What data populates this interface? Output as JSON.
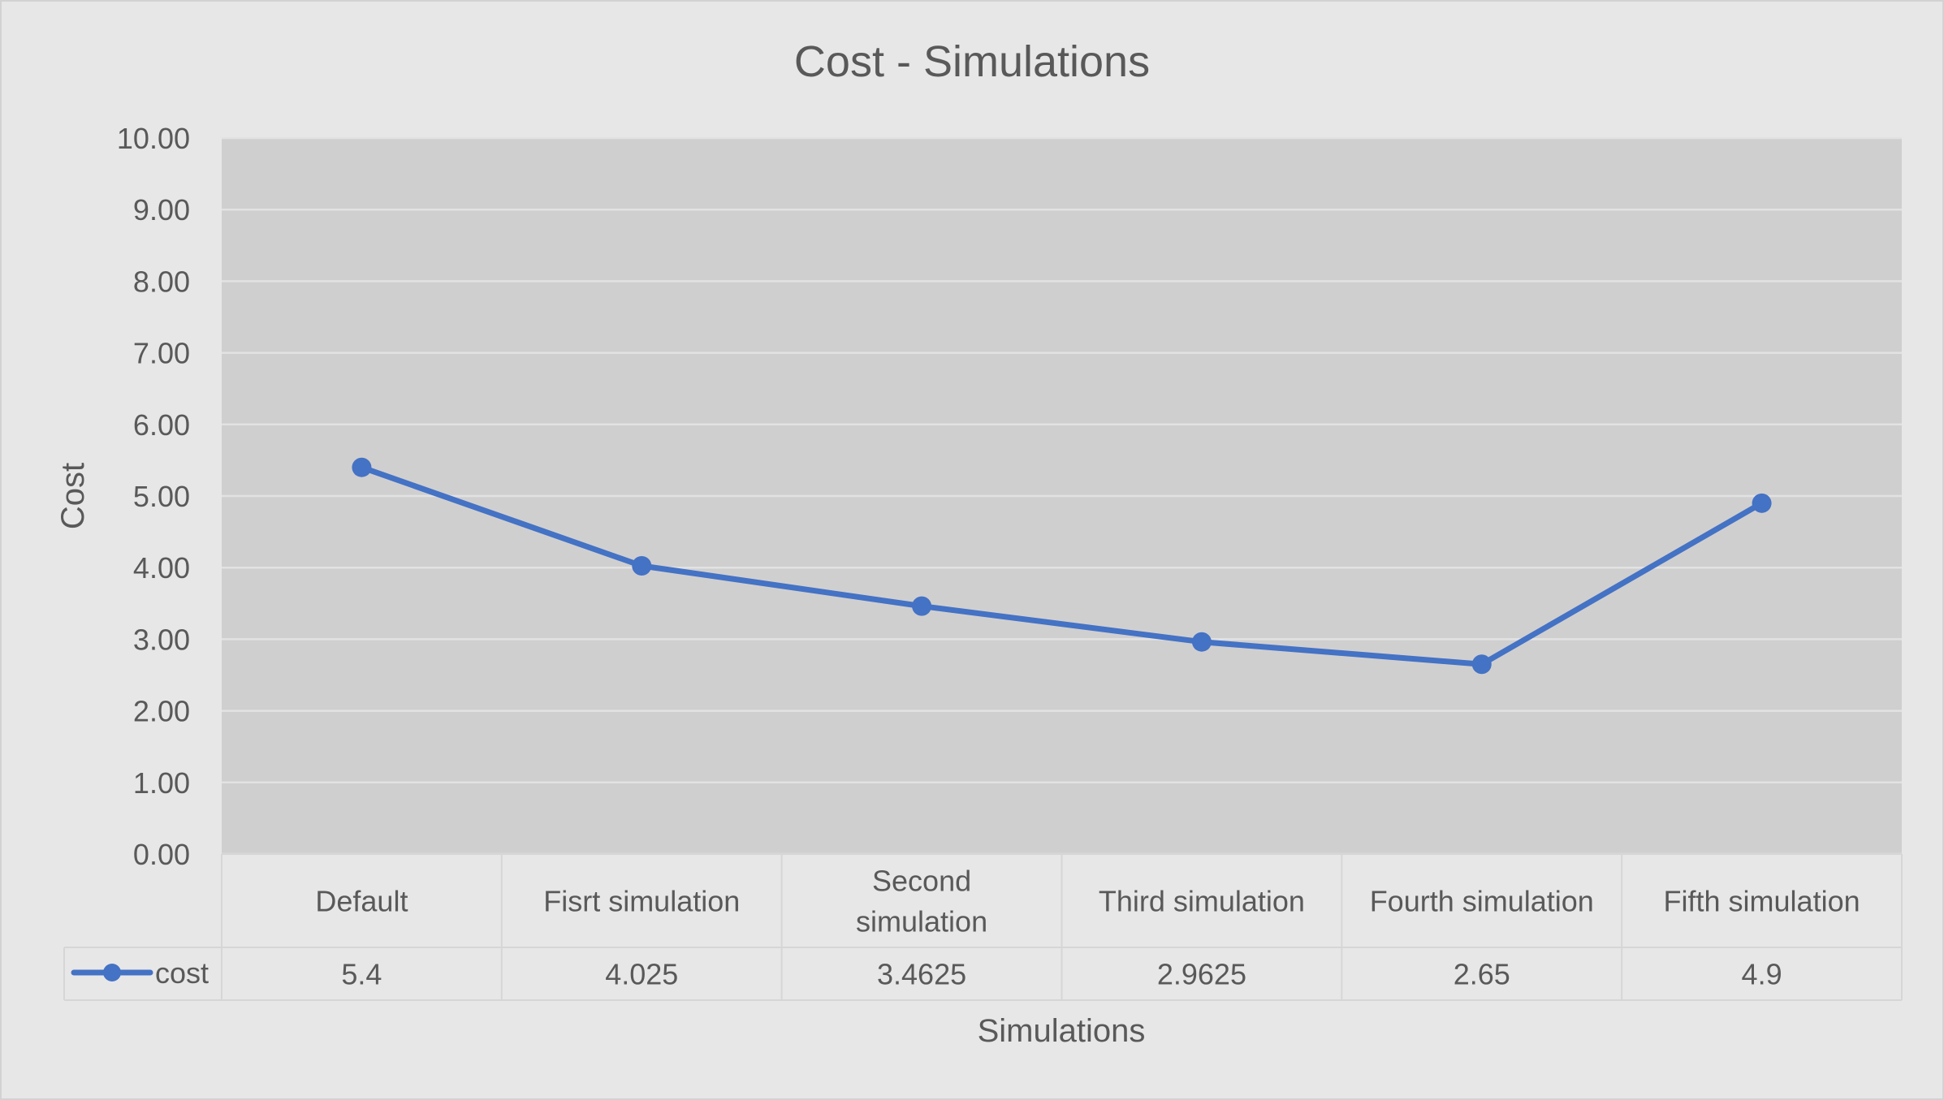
{
  "chart_data": {
    "type": "line",
    "title": "Cost - Simulations",
    "xlabel": "Simulations",
    "ylabel": "Cost",
    "ylim": [
      0,
      10
    ],
    "y_ticks": [
      "0.00",
      "1.00",
      "2.00",
      "3.00",
      "4.00",
      "5.00",
      "6.00",
      "7.00",
      "8.00",
      "9.00",
      "10.00"
    ],
    "categories": [
      [
        "Default"
      ],
      [
        "Fisrt simulation"
      ],
      [
        "Second",
        "simulation"
      ],
      [
        "Third simulation"
      ],
      [
        "Fourth simulation"
      ],
      [
        "Fifth simulation"
      ]
    ],
    "series": [
      {
        "name": "cost",
        "values": [
          5.4,
          4.025,
          3.4625,
          2.9625,
          2.65,
          4.9
        ],
        "value_labels": [
          "5.4",
          "4.025",
          "3.4625",
          "2.9625",
          "2.65",
          "4.9"
        ],
        "color": "#4472c4"
      }
    ],
    "grid": true,
    "legend": "data-table-left",
    "plot_background": "#d0cfd0",
    "chart_background": "#e7e7e7"
  }
}
